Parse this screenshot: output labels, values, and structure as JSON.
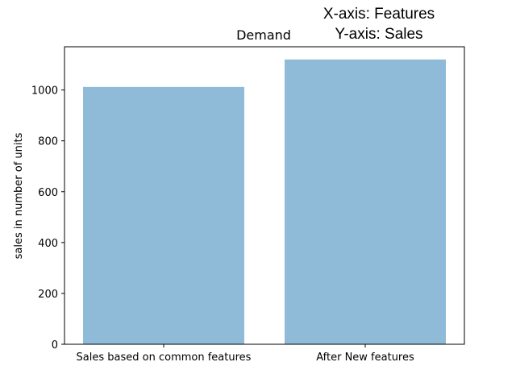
{
  "chart_data": {
    "type": "bar",
    "title": "Demand",
    "annotation": [
      "X-axis: Features",
      "Y-axis: Sales"
    ],
    "xlabel": "",
    "ylabel": "sales in number of units",
    "categories": [
      "Sales based on common features",
      "After New features"
    ],
    "values": [
      1012,
      1120
    ],
    "ylim": [
      0,
      1170
    ],
    "yticks": [
      0,
      200,
      400,
      600,
      800,
      1000
    ],
    "bar_color": "#8fbad8",
    "grid": false,
    "legend": "none"
  }
}
